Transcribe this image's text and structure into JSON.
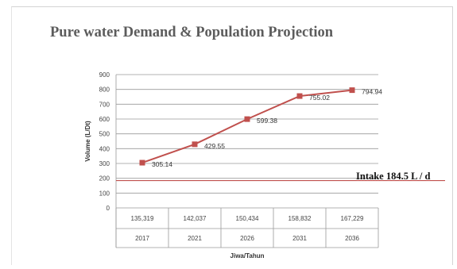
{
  "chart_data": {
    "type": "line",
    "title": "Pure water Demand & Population Projection",
    "ylabel": "Volume (L/Dt)",
    "xlabel": "Jiwa/Tahun",
    "ylim": [
      0,
      900
    ],
    "yticks": [
      0,
      100,
      200,
      300,
      400,
      500,
      600,
      700,
      800,
      900
    ],
    "categories": [
      "2017",
      "2021",
      "2026",
      "2031",
      "2036"
    ],
    "population": [
      "135,319",
      "142,037",
      "150,434",
      "158,832",
      "167,229"
    ],
    "series": [
      {
        "values": [
          305.14,
          429.55,
          599.38,
          755.02,
          794.94
        ],
        "labels": [
          "305.14",
          "429.55",
          "599.38",
          "755.02",
          "794.94"
        ],
        "color": "#c0504d"
      }
    ],
    "reference_line": {
      "value": 184.5,
      "label": "Intake 184.5 L / d",
      "color": "#c0504d"
    },
    "grid": true
  }
}
